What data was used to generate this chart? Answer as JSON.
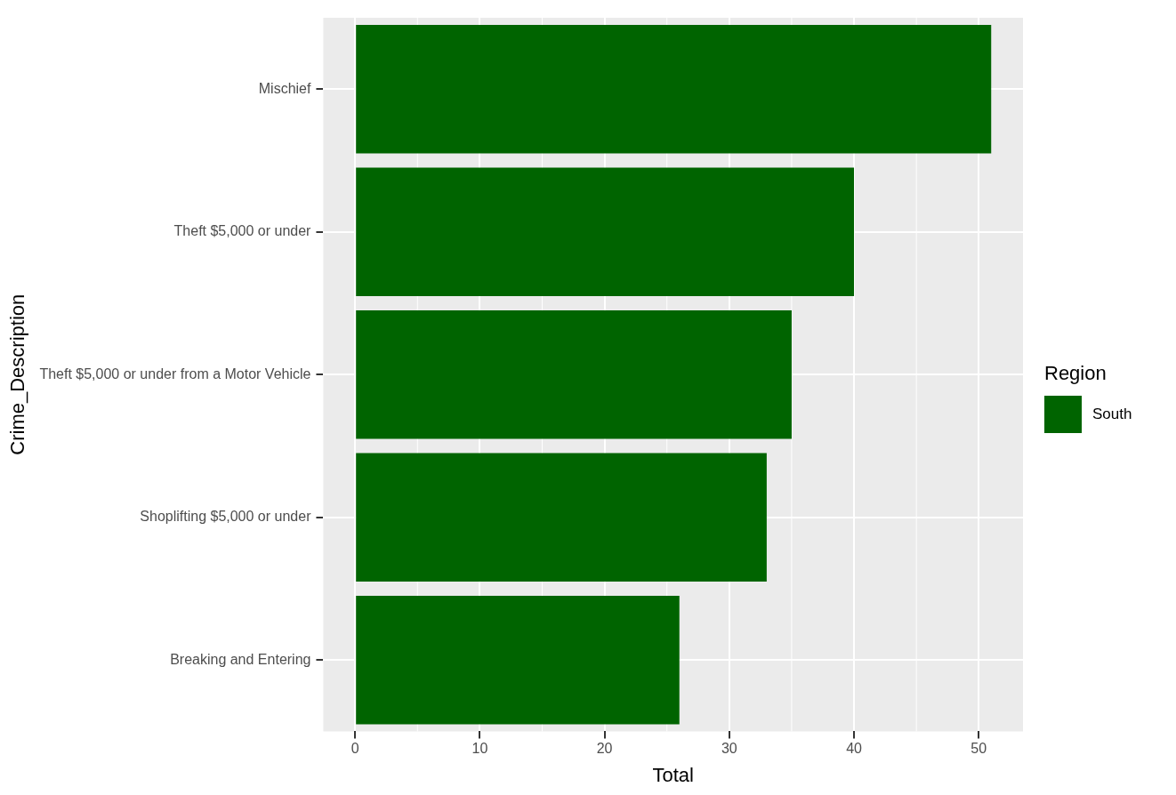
{
  "chart_data": {
    "type": "bar",
    "orientation": "horizontal",
    "xlabel": "Total",
    "ylabel": "Crime_Description",
    "legend_title": "Region",
    "categories": [
      "Mischief",
      "Theft $5,000 or under",
      "Theft $5,000 or under from a Motor Vehicle",
      "Shoplifting $5,000 or under",
      "Breaking and Entering"
    ],
    "series": [
      {
        "name": "South",
        "color": "#006400",
        "values": [
          51,
          40,
          35,
          33,
          26
        ]
      }
    ],
    "xlim": [
      -2.55,
      53.55
    ],
    "xticks": [
      0,
      10,
      20,
      30,
      40,
      50
    ],
    "grid": true,
    "legend": "right"
  }
}
